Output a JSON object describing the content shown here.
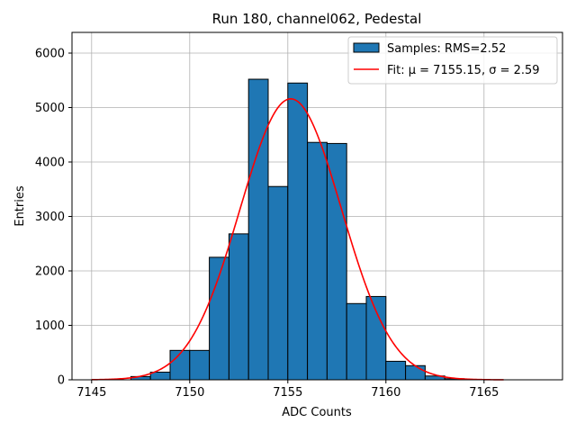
{
  "chart_data": {
    "type": "bar",
    "title": "Run 180, channel062, Pedestal",
    "xlabel": "ADC Counts",
    "ylabel": "Entries",
    "xlim": [
      7144,
      7169
    ],
    "ylim": [
      0,
      6380
    ],
    "xticks": [
      7145,
      7150,
      7155,
      7160,
      7165
    ],
    "yticks": [
      0,
      1000,
      2000,
      3000,
      4000,
      5000,
      6000
    ],
    "grid": true,
    "legend_position": "top-right",
    "bins": [
      {
        "x0": 7146,
        "x1": 7147,
        "value": 0
      },
      {
        "x0": 7147,
        "x1": 7148,
        "value": 60
      },
      {
        "x0": 7148,
        "x1": 7149,
        "value": 140
      },
      {
        "x0": 7149,
        "x1": 7150,
        "value": 540
      },
      {
        "x0": 7150,
        "x1": 7151,
        "value": 540
      },
      {
        "x0": 7151,
        "x1": 7152,
        "value": 2250
      },
      {
        "x0": 7152,
        "x1": 7153,
        "value": 2680
      },
      {
        "x0": 7153,
        "x1": 7154,
        "value": 5520
      },
      {
        "x0": 7154,
        "x1": 7155,
        "value": 3550
      },
      {
        "x0": 7155,
        "x1": 7156,
        "value": 5450
      },
      {
        "x0": 7156,
        "x1": 7157,
        "value": 4360
      },
      {
        "x0": 7157,
        "x1": 7158,
        "value": 4340
      },
      {
        "x0": 7158,
        "x1": 7159,
        "value": 1400
      },
      {
        "x0": 7159,
        "x1": 7160,
        "value": 1530
      },
      {
        "x0": 7160,
        "x1": 7161,
        "value": 340
      },
      {
        "x0": 7161,
        "x1": 7162,
        "value": 260
      },
      {
        "x0": 7162,
        "x1": 7163,
        "value": 70
      },
      {
        "x0": 7163,
        "x1": 7164,
        "value": 20
      },
      {
        "x0": 7164,
        "x1": 7165,
        "value": 0
      }
    ],
    "fit": {
      "mu": 7155.15,
      "sigma": 2.59,
      "peak": 5160,
      "x_start": 7145,
      "x_end": 7166
    },
    "series": [
      {
        "name": "Samples: RMS=2.52",
        "color": "#1f77b4"
      },
      {
        "name": "Fit: μ = 7155.15, σ = 2.59",
        "color": "#ff0000"
      }
    ]
  }
}
